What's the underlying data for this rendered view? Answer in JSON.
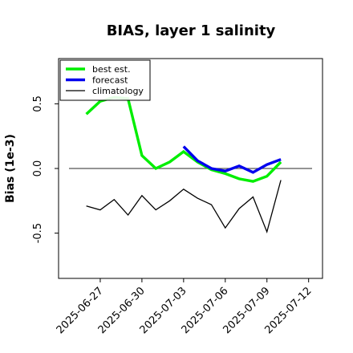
{
  "chart_data": {
    "type": "line",
    "title": "BIAS, layer 1 salinity",
    "xlabel": "",
    "ylabel": "Bias (1e-3)",
    "x_tick_labels": [
      "2025-06-27",
      "2025-06-30",
      "2025-07-03",
      "2025-07-06",
      "2025-07-09",
      "2025-07-12"
    ],
    "highlighted_tick": "2025-07-03",
    "highlight_color": "#228b22",
    "y_ticks": [
      -0.5,
      0.0,
      0.5
    ],
    "y_tick_labels": [
      "-0.5",
      "0.0",
      "0.5"
    ],
    "ylim": [
      -0.85,
      0.85
    ],
    "xlim": [
      "2025-06-24",
      "2025-07-13"
    ],
    "reference_line_y": 0.0,
    "grid": false,
    "legend_position": "top-left",
    "series": [
      {
        "name": "best est.",
        "color": "#00ee00",
        "x": [
          "2025-06-26",
          "2025-06-27",
          "2025-06-28",
          "2025-06-29",
          "2025-06-30",
          "2025-07-01",
          "2025-07-02",
          "2025-07-03",
          "2025-07-04",
          "2025-07-05",
          "2025-07-06",
          "2025-07-07",
          "2025-07-08",
          "2025-07-09",
          "2025-07-10"
        ],
        "y": [
          0.42,
          0.52,
          0.55,
          0.54,
          0.1,
          0.0,
          0.05,
          0.13,
          0.05,
          -0.01,
          -0.04,
          -0.08,
          -0.1,
          -0.06,
          0.05
        ]
      },
      {
        "name": "forecast",
        "color": "#0000ee",
        "x": [
          "2025-07-03",
          "2025-07-04",
          "2025-07-05",
          "2025-07-06",
          "2025-07-07",
          "2025-07-08",
          "2025-07-09",
          "2025-07-10"
        ],
        "y": [
          0.17,
          0.06,
          0.0,
          -0.02,
          0.02,
          -0.03,
          0.03,
          0.07
        ]
      },
      {
        "name": "climatology",
        "color": "#000000",
        "x": [
          "2025-06-26",
          "2025-06-27",
          "2025-06-28",
          "2025-06-29",
          "2025-06-30",
          "2025-07-01",
          "2025-07-02",
          "2025-07-03",
          "2025-07-04",
          "2025-07-05",
          "2025-07-06",
          "2025-07-07",
          "2025-07-08",
          "2025-07-09",
          "2025-07-10"
        ],
        "y": [
          -0.29,
          -0.32,
          -0.24,
          -0.36,
          -0.21,
          -0.32,
          -0.25,
          -0.16,
          -0.23,
          -0.28,
          -0.46,
          -0.31,
          -0.22,
          -0.49,
          -0.09
        ]
      }
    ]
  }
}
